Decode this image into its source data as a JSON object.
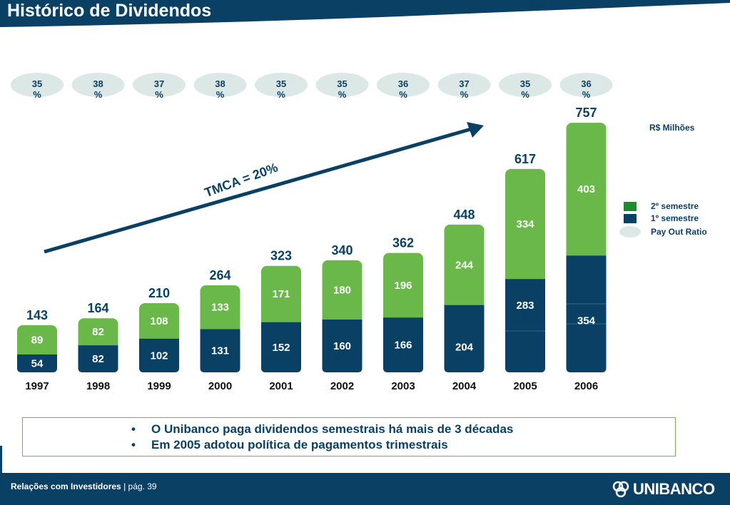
{
  "title": "Histórico de Dividendos",
  "colors": {
    "navy": "#0a4064",
    "green": "#6bb84a",
    "oval": "#dbe8e6",
    "legend_green": "#1f8a2e"
  },
  "chart_data": {
    "type": "bar",
    "stacked": true,
    "unit_label": "R$ Milhões",
    "categories": [
      "1997",
      "1998",
      "1999",
      "2000",
      "2001",
      "2002",
      "2003",
      "2004",
      "2005",
      "2006"
    ],
    "series": [
      {
        "name": "1º semestre",
        "values": [
          54,
          82,
          102,
          131,
          152,
          160,
          166,
          204,
          283,
          354
        ]
      },
      {
        "name": "2º semestre",
        "values": [
          89,
          82,
          108,
          133,
          171,
          180,
          196,
          244,
          334,
          403
        ]
      }
    ],
    "totals": [
      143,
      164,
      210,
      264,
      323,
      340,
      362,
      448,
      617,
      757
    ],
    "payout_ratio": [
      {
        "value": "35",
        "unit": "%"
      },
      {
        "value": "38",
        "unit": "%"
      },
      {
        "value": "37",
        "unit": "%"
      },
      {
        "value": "38",
        "unit": "%"
      },
      {
        "value": "35",
        "unit": "%"
      },
      {
        "value": "35",
        "unit": "%"
      },
      {
        "value": "36",
        "unit": "%"
      },
      {
        "value": "37",
        "unit": "%"
      },
      {
        "value": "35",
        "unit": "%"
      },
      {
        "value": "36",
        "unit": "%"
      }
    ],
    "trend_label": "TMCA = 20%",
    "legend": {
      "items": [
        "2º semestre",
        "1º semestre",
        "Pay Out Ratio"
      ],
      "placement": "right"
    }
  },
  "notes": {
    "bullet": "•",
    "items": [
      "O Unibanco paga dividendos semestrais há mais de 3 décadas",
      "Em 2005 adotou política de pagamentos trimestrais"
    ]
  },
  "footer": {
    "section": "Relações com Investidores",
    "separator": "|",
    "page": "pág. 39",
    "brand": "UNIBANCO"
  }
}
